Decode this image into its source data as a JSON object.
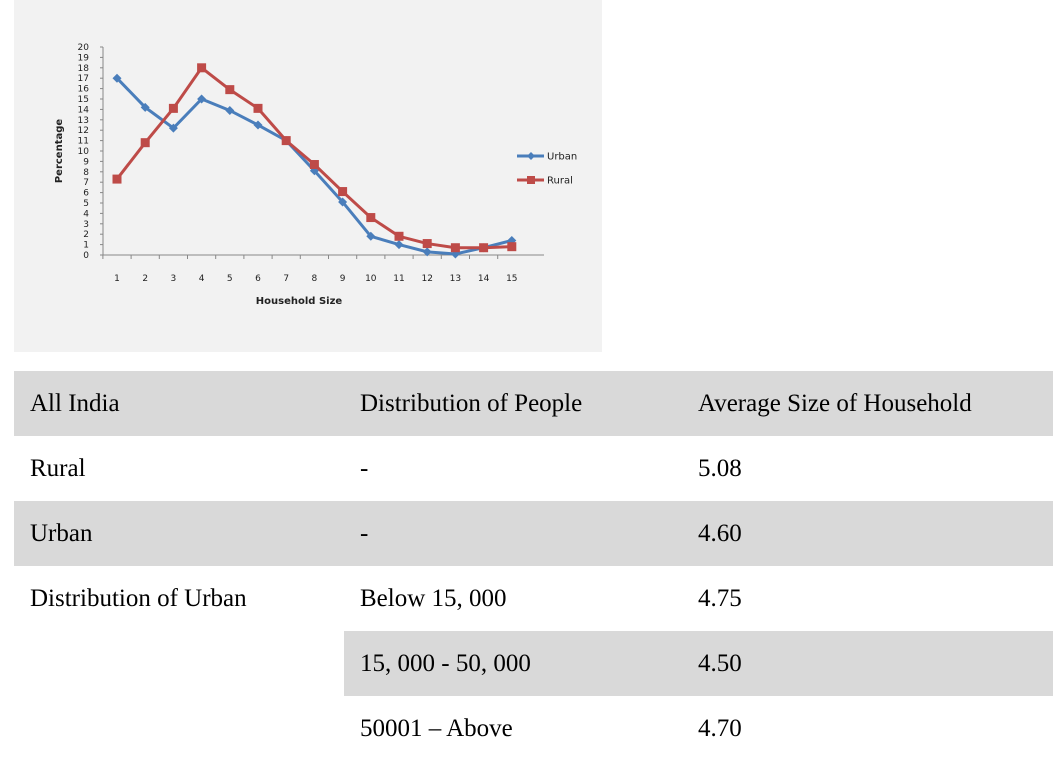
{
  "chart_data": {
    "type": "line",
    "title": "",
    "xlabel": "Household Size",
    "ylabel": "Percentage",
    "x": [
      1,
      2,
      3,
      4,
      5,
      6,
      7,
      8,
      9,
      10,
      11,
      12,
      13,
      14,
      15
    ],
    "ylim": [
      0,
      20
    ],
    "yticks": [
      0,
      1,
      2,
      3,
      4,
      5,
      6,
      7,
      8,
      9,
      10,
      11,
      12,
      13,
      14,
      15,
      16,
      17,
      18,
      19,
      20
    ],
    "grid": false,
    "legend_position": "right",
    "series": [
      {
        "name": "Urban",
        "color": "#4a7ebb",
        "marker": "diamond",
        "values": [
          17,
          14.2,
          12.2,
          15,
          13.9,
          12.5,
          11,
          8.1,
          5.1,
          1.8,
          1,
          0.3,
          0.1,
          0.7,
          1.4
        ]
      },
      {
        "name": "Rural",
        "color": "#be4b48",
        "marker": "square",
        "values": [
          7.3,
          10.8,
          14.1,
          18,
          15.9,
          14.1,
          11,
          8.7,
          6.1,
          3.6,
          1.8,
          1.1,
          0.7,
          0.7,
          0.8
        ]
      }
    ]
  },
  "table": {
    "header": [
      "All India",
      "Distribution of People",
      "Average Size of Household"
    ],
    "rows": [
      [
        "Rural",
        "-",
        "5.08"
      ],
      [
        "Urban",
        "-",
        "4.60"
      ],
      [
        "Distribution of Urban",
        "Below 15, 000",
        "4.75"
      ],
      [
        "",
        "15, 000 - 50, 000",
        "4.50"
      ],
      [
        "",
        "50001 – Above",
        "4.70"
      ]
    ]
  }
}
